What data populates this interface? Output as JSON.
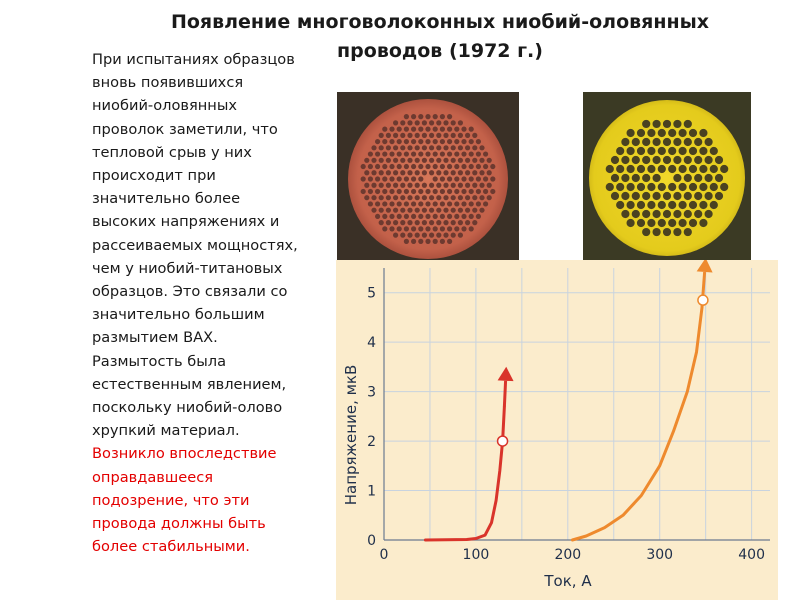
{
  "slide": {
    "title_line1": "Появление многоволоконных ниобий-оловянных",
    "title_line2": "проводов (1972 г.)",
    "body_lines": [
      "При испытаниях образцов",
      "вновь появившихся",
      "ниобий-оловянных",
      "проволок заметили, что",
      "тепловой срыв у них",
      "происходит при",
      "значительно более",
      "высоких напряжениях и",
      "рассеиваемых мощностях,",
      "чем у ниобий-титановых",
      "образцов.   Это связали со",
      "значительно большим",
      "размытием ВАХ.",
      "Размытость  была",
      "естественным явлением,",
      "поскольку  ниобий-олово",
      "хрупкий материал."
    ],
    "highlight_lines": [
      "Возникло  впоследствие",
      "оправдавшееся",
      "подозрение, что эти",
      "провода должны быть",
      "более стабильными."
    ],
    "colors": {
      "highlight": "#e30000",
      "chart_bg": "#fbeccc",
      "red_curve": "#d9342b",
      "orange_curve": "#ee8a2e",
      "grid": "#c8d3df",
      "left_photo_disc": "#c7654a",
      "right_photo_disc": "#e8d11f"
    },
    "photos": [
      {
        "name": "multifilament-cross-section-copper-icon"
      },
      {
        "name": "multifilament-cross-section-yellow-icon"
      }
    ]
  },
  "chart_data": {
    "type": "line",
    "xlabel": "Ток, А",
    "ylabel": "Напряжение,  мкВ",
    "xlim": [
      0,
      420
    ],
    "ylim": [
      0,
      5.5
    ],
    "x_ticks": [
      0,
      100,
      200,
      300,
      400
    ],
    "y_ticks": [
      0,
      1,
      2,
      3,
      4,
      5
    ],
    "grid": true,
    "series": [
      {
        "color": "#d9342b",
        "points": [
          [
            45,
            0
          ],
          [
            90,
            0.01
          ],
          [
            100,
            0.03
          ],
          [
            110,
            0.1
          ],
          [
            117,
            0.35
          ],
          [
            122,
            0.8
          ],
          [
            126,
            1.4
          ],
          [
            129,
            2.0
          ],
          [
            131,
            2.7
          ],
          [
            133,
            3.3
          ]
        ],
        "marker": [
          129,
          2.0
        ],
        "arrow_to": [
          133,
          3.0
        ]
      },
      {
        "color": "#ee8a2e",
        "points": [
          [
            205,
            0
          ],
          [
            220,
            0.08
          ],
          [
            240,
            0.25
          ],
          [
            260,
            0.5
          ],
          [
            280,
            0.9
          ],
          [
            300,
            1.5
          ],
          [
            315,
            2.2
          ],
          [
            330,
            3.0
          ],
          [
            340,
            3.8
          ],
          [
            346,
            4.7
          ],
          [
            350,
            5.5
          ]
        ],
        "marker": [
          347,
          4.85
        ],
        "arrow_to": [
          349,
          5.3
        ]
      }
    ]
  }
}
